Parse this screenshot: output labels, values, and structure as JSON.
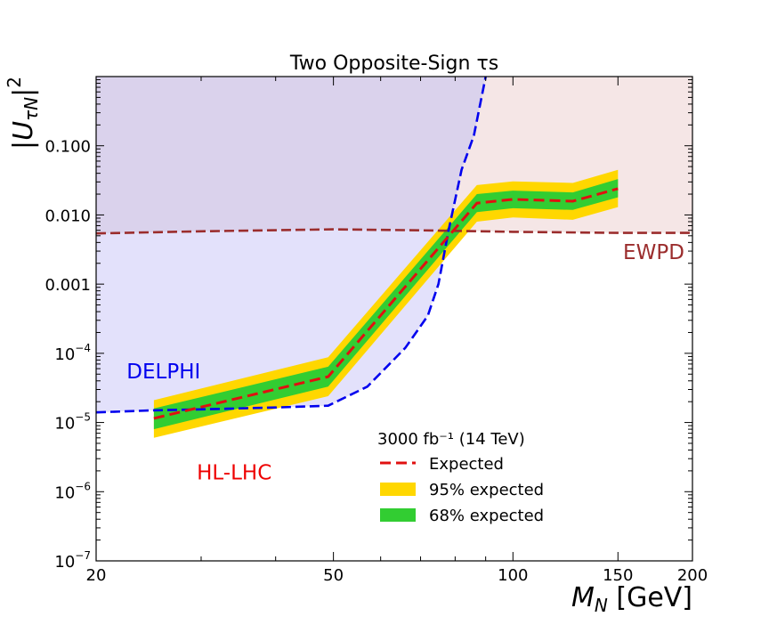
{
  "chart_data": {
    "type": "line",
    "title": "Two Opposite-Sign τs",
    "xlabel": "M_N [GeV]",
    "ylabel": "|U_τN|²",
    "x_scale": "log",
    "y_scale": "log",
    "xlim": [
      20,
      200
    ],
    "ylim": [
      1e-07,
      1.0
    ],
    "x_ticks": [
      {
        "value": 20,
        "label": "20"
      },
      {
        "value": 50,
        "label": "50"
      },
      {
        "value": 100,
        "label": "100"
      },
      {
        "value": 150,
        "label": "150"
      },
      {
        "value": 200,
        "label": "200"
      }
    ],
    "y_ticks": [
      {
        "value": 1e-07,
        "base": "10",
        "exp": "−7"
      },
      {
        "value": 1e-06,
        "base": "10",
        "exp": "−6"
      },
      {
        "value": 1e-05,
        "base": "10",
        "exp": "−5"
      },
      {
        "value": 0.0001,
        "base": "10",
        "exp": "−4"
      },
      {
        "value": 0.001,
        "text": "0.001"
      },
      {
        "value": 0.01,
        "text": "0.010"
      },
      {
        "value": 0.1,
        "text": "0.100"
      }
    ],
    "annotations": [
      {
        "name": "delphi-label",
        "text": "DELPHI",
        "color": "#0000ee",
        "x": 22.5,
        "y": 5.5e-05
      },
      {
        "name": "ewpd-label",
        "text": "EWPD",
        "color": "#9b2d2d",
        "x": 153,
        "y": 0.0029
      },
      {
        "name": "hllhc-label",
        "text": "HL-LHC",
        "color": "#ee0000",
        "x": 29.5,
        "y": 1.9e-06
      }
    ],
    "regions": {
      "delphi": {
        "fill": "#e3e1fb",
        "boundary_color": "#0000ee",
        "boundary": [
          [
            20,
            1.4e-05
          ],
          [
            25,
            1.5e-05
          ],
          [
            30,
            1.55e-05
          ],
          [
            40,
            1.65e-05
          ],
          [
            49,
            1.75e-05
          ],
          [
            57,
            3.3e-05
          ],
          [
            66,
            0.00012
          ],
          [
            72,
            0.00035
          ],
          [
            75,
            0.001
          ],
          [
            78,
            0.006
          ],
          [
            82,
            0.045
          ],
          [
            86,
            0.14
          ],
          [
            90,
            1.0
          ]
        ]
      },
      "ewpd": {
        "fill": "#f5e6e6",
        "boundary_color": "#9b2d2d",
        "boundary": [
          [
            20,
            0.0054
          ],
          [
            30,
            0.0058
          ],
          [
            50,
            0.0062
          ],
          [
            70,
            0.006
          ],
          [
            100,
            0.0057
          ],
          [
            150,
            0.0055
          ],
          [
            200,
            0.0055
          ]
        ]
      },
      "overlap_fill": "#dad2ec"
    },
    "series": [
      {
        "name": "Expected",
        "style": "dashed",
        "color": "#e01010",
        "x": [
          25,
          49,
          87,
          100,
          126,
          150
        ],
        "y": [
          1.15e-05,
          4.6e-05,
          0.0148,
          0.0168,
          0.0158,
          0.024
        ]
      }
    ],
    "bands": [
      {
        "name": "95% expected",
        "color": "#ffd700",
        "x": [
          25,
          49,
          87,
          100,
          126,
          150
        ],
        "low": [
          6e-06,
          2.4e-05,
          0.008,
          0.0092,
          0.0085,
          0.013
        ],
        "high": [
          2.1e-05,
          8.8e-05,
          0.027,
          0.0305,
          0.029,
          0.045
        ]
      },
      {
        "name": "68% expected",
        "color": "#32cd32",
        "x": [
          25,
          49,
          87,
          100,
          126,
          150
        ],
        "low": [
          8e-06,
          3.3e-05,
          0.011,
          0.0125,
          0.0118,
          0.018
        ],
        "high": [
          1.6e-05,
          6.4e-05,
          0.02,
          0.0225,
          0.0212,
          0.033
        ]
      }
    ],
    "legend": {
      "title": "3000 fb⁻¹ (14 TeV)",
      "position": "lower-right",
      "entries": [
        {
          "label": "Expected",
          "kind": "dashed",
          "color": "#e01010"
        },
        {
          "label": "95% expected",
          "kind": "patch",
          "color": "#ffd700"
        },
        {
          "label": "68% expected",
          "kind": "patch",
          "color": "#32cd32"
        }
      ]
    }
  }
}
